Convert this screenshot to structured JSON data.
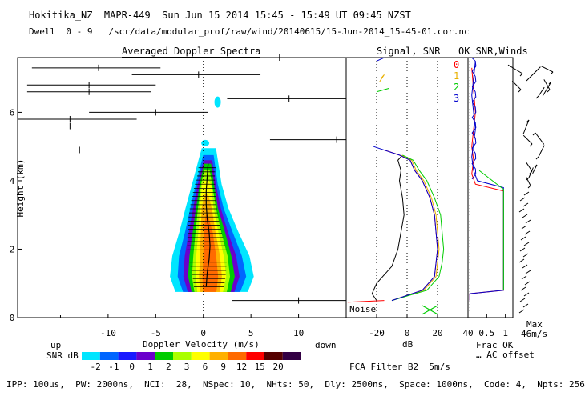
{
  "header": {
    "line1": "Hokitika_NZ  MAPR-449  Sun Jun 15 2014 15:45 - 15:49 UT 09:45 NZST",
    "line2": "Dwell  0 - 9   /scr/data/modular_prof/raw/wind/20140615/15-Jun-2014_15-45-01.cor.nc"
  },
  "panels": {
    "doppler_title": "Averaged Doppler Spectra",
    "snr_title": "Signal, SNR",
    "winds_title": "OK SNR,Winds"
  },
  "labels": {
    "ylabel": "Height (km)",
    "xlabel": "Doppler Velocity (m/s)",
    "up": "up",
    "down": "down",
    "snr_units": "SNR dB",
    "noise": "Noise",
    "db_unit": "dB",
    "max_label": "Max",
    "max_value": "46m/s",
    "frac_ok": "Frac OK",
    "ac_offset": "… AC offset",
    "filter": "FCA Filter B2  5m/s"
  },
  "legend_dwells": [
    "0",
    "1",
    "2",
    "3"
  ],
  "footer": "IPP: 100μs,  PW: 2000ns,  NCI:  28,  NSpec: 10,  NHts: 50,  Dly: 2500ns,  Space: 1000ns,  Code: 4,  Npts: 256",
  "colors": {
    "scale": [
      "#00e5ff",
      "#0066ff",
      "#1a1aff",
      "#6a00cc",
      "#00cc00",
      "#aaff00",
      "#ffff00",
      "#ffb000",
      "#ff6a00",
      "#ff0000",
      "#550000",
      "#330044"
    ],
    "dwell0": "#ff0000",
    "dwell1": "#e8b000",
    "dwell2": "#00cc00",
    "dwell3": "#0000cc"
  },
  "chart_data": [
    {
      "type": "heatmap",
      "title": "Averaged Doppler Spectra",
      "xlabel": "Doppler Velocity (m/s)",
      "ylabel": "Height (km)",
      "xlim": [
        -19.5,
        15
      ],
      "ylim": [
        0,
        7.6
      ],
      "xticks": [
        -10,
        -5,
        0,
        5,
        10
      ],
      "yticks": [
        0,
        2,
        4,
        6
      ],
      "colorbar": {
        "label": "SNR dB",
        "ticks": [
          "-2",
          "-1",
          "0",
          "1",
          "2",
          "3",
          "6",
          "9",
          "12",
          "15",
          "20"
        ]
      },
      "spectral_peak": {
        "heights_km": [
          0.9,
          1.3,
          1.7,
          2.1,
          2.5,
          2.9,
          3.3,
          3.7,
          4.1,
          4.5
        ],
        "velocity_ms": [
          0.3,
          0.4,
          0.6,
          0.7,
          0.6,
          0.4,
          0.3,
          0.3,
          0.4,
          0.5
        ]
      },
      "interference_bars": [
        {
          "height_km": 7.6,
          "x0": -16,
          "x1": 15,
          "peak": 8
        },
        {
          "height_km": 7.3,
          "x0": -18,
          "x1": -4.5,
          "peak": -11
        },
        {
          "height_km": 7.1,
          "x0": -7.5,
          "x1": 6,
          "peak": -0.5
        },
        {
          "height_km": 6.8,
          "x0": -18.5,
          "x1": -5,
          "peak": -12
        },
        {
          "height_km": 6.6,
          "x0": -18.5,
          "x1": -5.5,
          "peak": -12
        },
        {
          "height_km": 6.4,
          "x0": 2.5,
          "x1": 15,
          "peak": 9
        },
        {
          "height_km": 6.0,
          "x0": -12,
          "x1": 0.5,
          "peak": -5
        },
        {
          "height_km": 5.8,
          "x0": -19.5,
          "x1": -7,
          "peak": -14
        },
        {
          "height_km": 5.6,
          "x0": -19.5,
          "x1": -7,
          "peak": -14
        },
        {
          "height_km": 5.2,
          "x0": 7,
          "x1": 15,
          "peak": 14
        },
        {
          "height_km": 4.9,
          "x0": -19.5,
          "x1": -6,
          "peak": -13
        },
        {
          "height_km": 0.5,
          "x0": 3,
          "x1": 15,
          "peak": 10
        }
      ]
    },
    {
      "type": "line",
      "title": "Signal, SNR",
      "xlabel": "dB",
      "xlim": [
        -40,
        40
      ],
      "xticks": [
        -20,
        0,
        20,
        40
      ],
      "ylim": [
        0,
        7.6
      ],
      "series": [
        {
          "name": "Noise",
          "x": [
            -20,
            -23,
            -20,
            -10,
            -6,
            -4,
            -2,
            -3,
            -5,
            -4,
            -6,
            -4
          ],
          "y": [
            0.5,
            0.7,
            1.0,
            1.5,
            2.0,
            2.5,
            3.0,
            3.5,
            4.0,
            4.3,
            4.6,
            4.7
          ]
        },
        {
          "name": "0",
          "x": [
            -10,
            10,
            18,
            19,
            20,
            19,
            18,
            15,
            10,
            5,
            2,
            -5,
            -15
          ],
          "y": [
            0.5,
            0.8,
            1.2,
            1.6,
            2.0,
            2.5,
            3.0,
            3.5,
            4.0,
            4.3,
            4.6,
            4.75,
            4.9
          ]
        },
        {
          "name": "1",
          "x": [
            -10,
            11,
            19,
            20,
            21,
            20,
            19,
            16,
            11,
            6,
            3,
            -4
          ],
          "y": [
            0.5,
            0.8,
            1.2,
            1.6,
            2.0,
            2.5,
            3.0,
            3.5,
            4.0,
            4.3,
            4.6,
            4.75
          ]
        },
        {
          "name": "2",
          "x": [
            -10,
            13,
            21,
            23,
            24,
            23,
            22,
            18,
            13,
            8,
            4,
            -3
          ],
          "y": [
            0.5,
            0.8,
            1.2,
            1.6,
            2.0,
            2.5,
            3.0,
            3.5,
            4.0,
            4.3,
            4.6,
            4.75
          ]
        },
        {
          "name": "3",
          "x": [
            -10,
            10,
            18,
            19,
            20,
            19,
            18,
            15,
            10,
            5,
            2,
            -5,
            -22
          ],
          "y": [
            0.5,
            0.8,
            1.2,
            1.6,
            2.0,
            2.5,
            3.0,
            3.5,
            4.0,
            4.3,
            4.6,
            4.75,
            5.0
          ]
        }
      ],
      "markers": [
        "+",
        "x"
      ]
    },
    {
      "type": "line",
      "title": "OK SNR,Winds",
      "xlabel": "Frac OK",
      "xticks": [
        "0.5",
        "1"
      ],
      "xlim": [
        0,
        1.2
      ],
      "ylim": [
        0,
        7.6
      ],
      "frac_ok": [
        {
          "name": "0",
          "x": [
            0.05,
            0.05,
            0.95,
            0.95,
            0.2,
            0.1,
            0.15,
            0.1,
            0.2,
            0.1
          ],
          "y": [
            0.5,
            0.7,
            0.8,
            3.7,
            3.9,
            4.2,
            4.6,
            5.0,
            6.0,
            7.3
          ]
        },
        {
          "name": "3",
          "x": [
            0.05,
            0.05,
            0.95,
            0.95,
            0.25,
            0.15,
            0.1,
            0.2,
            0.1,
            0.2
          ],
          "y": [
            0.5,
            0.7,
            0.8,
            3.8,
            4.0,
            4.3,
            4.7,
            5.5,
            6.5,
            7.5
          ]
        }
      ],
      "wind_barbs_max": "46m/s"
    }
  ]
}
